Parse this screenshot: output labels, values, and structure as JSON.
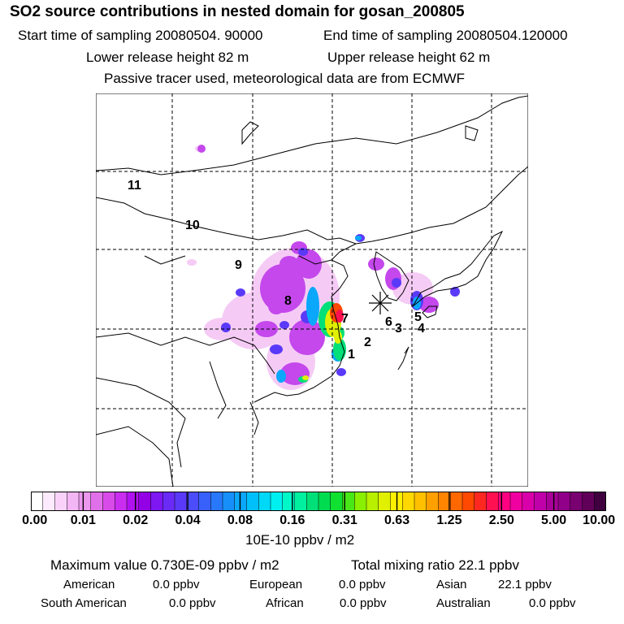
{
  "header": {
    "title": "SO2 source contributions in nested domain for gosan_200805",
    "start_label": "Start time of sampling 20080504. 90000",
    "end_label": "End time of sampling 20080504.120000",
    "lower_label": "Lower release height   82 m",
    "upper_label": "Upper release height   62 m",
    "info": "Passive tracer used, meteorological data are from ECMWF"
  },
  "map": {
    "region_labels": [
      "1",
      "2",
      "3",
      "4",
      "5",
      "6",
      "7",
      "8",
      "9",
      "10",
      "11"
    ],
    "receptor_marker": "receptor-star"
  },
  "colorbar": {
    "unit": "10E-10 ppbv / m2",
    "ticks": [
      "0.00",
      "0.01",
      "0.02",
      "0.04",
      "0.08",
      "0.16",
      "0.31",
      "0.63",
      "1.25",
      "2.50",
      "5.00",
      "10.00"
    ],
    "colors": [
      "#ffffff",
      "#fdeafd",
      "#f9d2f9",
      "#f3b6f4",
      "#ec97ee",
      "#e070ea",
      "#d84be9",
      "#c92ef0",
      "#b012ef",
      "#9400e6",
      "#7e17f2",
      "#6a2bf6",
      "#5a3af8",
      "#4b4cfa",
      "#3860fb",
      "#2878fb",
      "#168ffb",
      "#0aa7fb",
      "#00c0fb",
      "#00d8f8",
      "#00f0f0",
      "#00f8c8",
      "#00f0a0",
      "#00e078",
      "#00dc50",
      "#10e030",
      "#48e818",
      "#88f000",
      "#b8f000",
      "#e0f000",
      "#fff000",
      "#ffd800",
      "#ffc000",
      "#ffa000",
      "#ff8400",
      "#ff6800",
      "#ff4800",
      "#ff2820",
      "#ff1050",
      "#ff0080",
      "#f000a0",
      "#d800a8",
      "#c000a8",
      "#a80098",
      "#900088",
      "#780070",
      "#600058",
      "#400040"
    ]
  },
  "footer": {
    "max_label": "Maximum value  0.730E-09 ppbv / m2",
    "total_label": "Total mixing ratio      22.1 ppbv",
    "american": "American",
    "american_val": "0.0 ppbv",
    "european": "European",
    "european_val": "0.0 ppbv",
    "asian": "Asian",
    "asian_val": "22.1 ppbv",
    "south_american": "South American",
    "south_american_val": "0.0 ppbv",
    "african": "African",
    "african_val": "0.0 ppbv",
    "australian": "Australian",
    "australian_val": "0.0 ppbv"
  }
}
